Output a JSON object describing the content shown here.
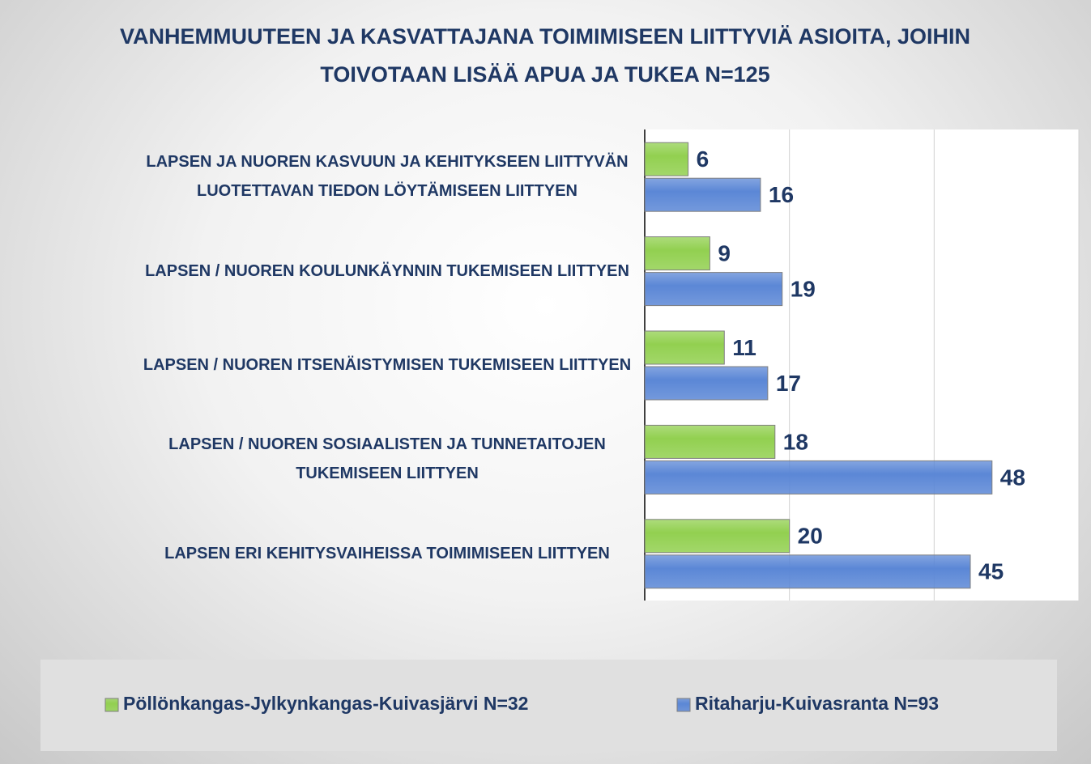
{
  "chart_data": {
    "type": "barh",
    "title": "VANHEMMUUTEEN JA KASVATTAJANA TOIMIMISEEN LIITTYVIÄ ASIOITA, JOIHIN TOIVOTAAN LISÄÄ APUA JA TUKEA N=125",
    "categories": [
      "LAPSEN JA NUOREN KASVUUN JA KEHITYKSEEN LIITTYVÄN LUOTETTAVAN TIEDON LÖYTÄMISEEN LIITTYEN",
      "LAPSEN / NUOREN KOULUNKÄYNNIN TUKEMISEEN LIITTYEN",
      "LAPSEN / NUOREN ITSENÄISTYMISEN TUKEMISEEN LIITTYEN",
      "LAPSEN / NUOREN SOSIAALISTEN JA TUNNETAITOJEN TUKEMISEEN LIITTYEN",
      "LAPSEN ERI KEHITYSVAIHEISSA TOIMIMISEEN LIITTYEN"
    ],
    "series": [
      {
        "name": "Pöllönkangas-Jylkynkangas-Kuivasjärvi N=32",
        "color": "#92d050",
        "values": [
          6,
          9,
          11,
          18,
          20
        ]
      },
      {
        "name": "Ritaharju-Kuivasranta N=93",
        "color": "#5b87d6",
        "values": [
          16,
          19,
          17,
          48,
          45
        ]
      }
    ],
    "xlim": [
      0,
      60
    ],
    "xticks": [
      0,
      20,
      40,
      60
    ],
    "grid": true,
    "legend": "bottom"
  }
}
